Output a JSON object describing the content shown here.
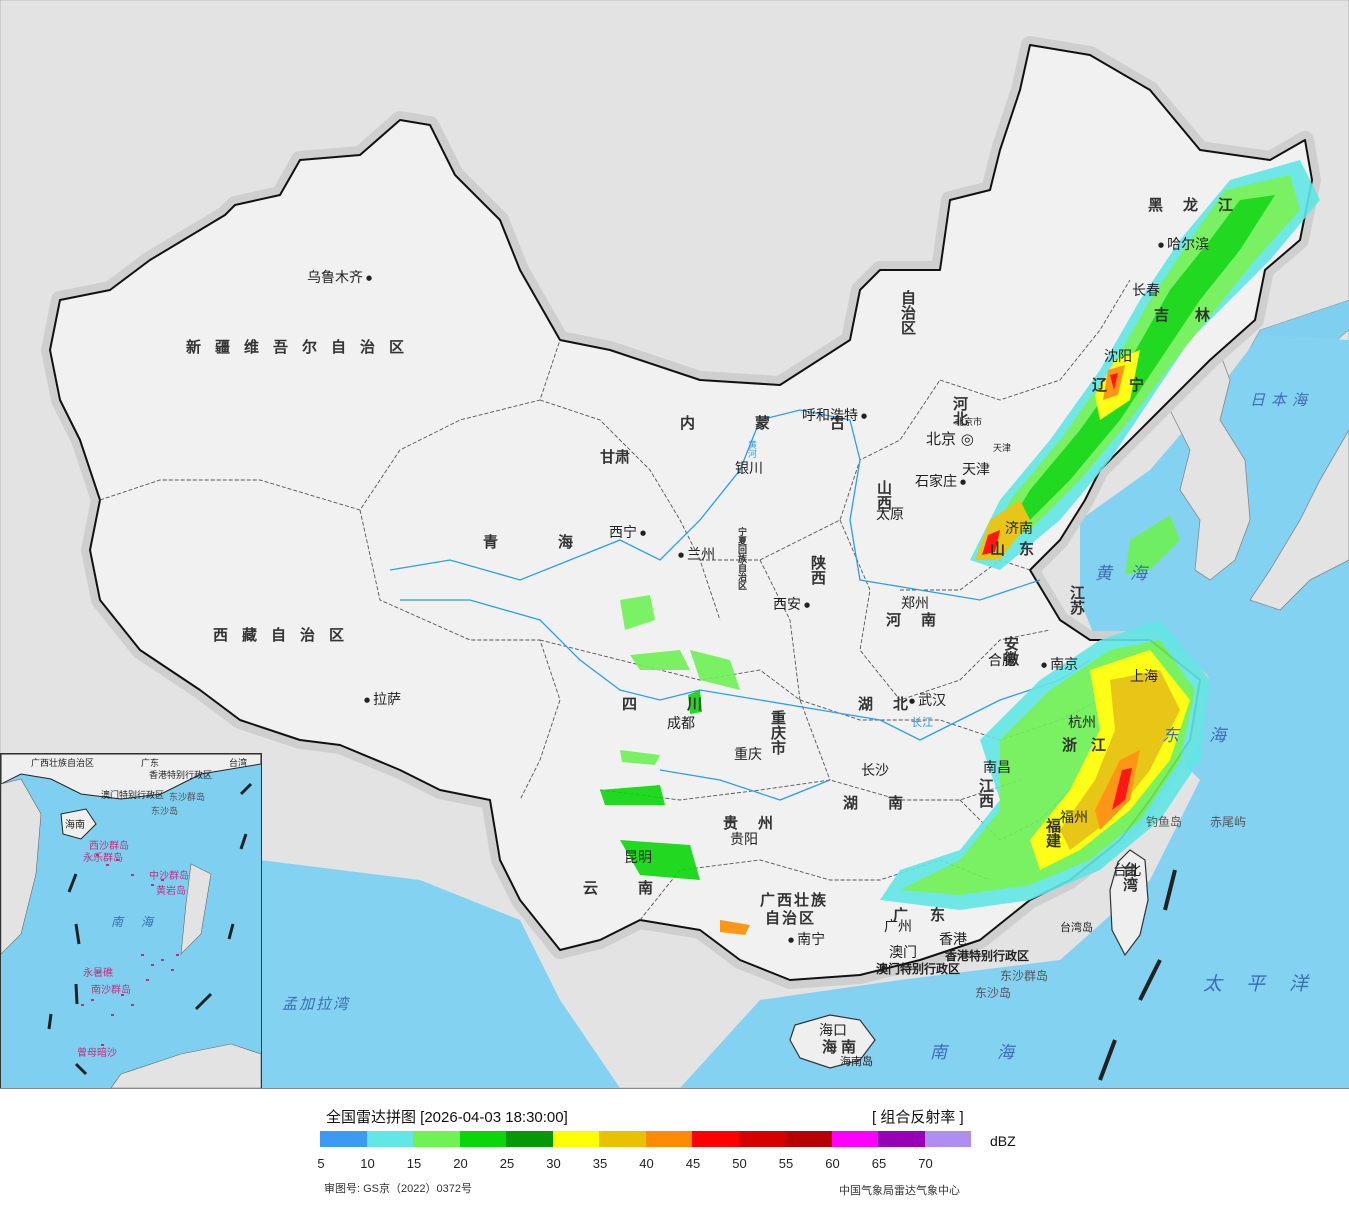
{
  "map": {
    "cities": {
      "urumqi": "乌鲁木齐",
      "lhasa": "拉萨",
      "xining": "西宁",
      "lanzhou": "兰州",
      "yinchuan": "银川",
      "hohhot": "呼和浩特",
      "beijing": "北京",
      "beijing_small": "北京市",
      "tianjin": "天津",
      "tianjin_small": "天津",
      "shijiazhuang": "石家庄",
      "taiyuan": "太原",
      "xian": "西安",
      "zhengzhou": "郑州",
      "jinan": "济南",
      "harbin": "哈尔滨",
      "changchun": "长春",
      "shenyang": "沈阳",
      "hefei": "合肥",
      "nanjing": "南京",
      "shanghai": "上海",
      "hangzhou": "杭州",
      "wuhan": "武汉",
      "chengdu": "成都",
      "chongqing": "重庆",
      "changsha": "长沙",
      "nanchang": "南昌",
      "fuzhou": "福州",
      "guiyang": "贵阳",
      "kunming": "昆明",
      "nanning": "南宁",
      "guangzhou": "广州",
      "macau": "澳门",
      "hongkong": "香港",
      "haikou": "海口",
      "taibei": "台北"
    },
    "provinces": {
      "xinjiang": "新疆维吾尔自治区",
      "xizang": "西藏自治区",
      "qinghai": "青海",
      "gansu": "甘肃",
      "neimenggu_1": "内蒙古",
      "neimenggu_2": "自治区",
      "ningxia": "宁夏回族自治区",
      "shaanxi": "陕西",
      "shanxi": "山西",
      "hebei": "河北",
      "henan": "河南",
      "shandong": "山东",
      "heilongjiang": "黑龙江",
      "jilin": "吉林",
      "liaoning": "辽宁",
      "sichuan": "四川",
      "chongqing": "重庆市",
      "hubei": "湖北",
      "hunan": "湖南",
      "anhui": "安徽",
      "jiangsu": "江苏",
      "zhejiang": "浙江",
      "jiangxi": "江西",
      "fujian": "福建",
      "guizhou": "贵州",
      "yunnan": "云南",
      "guangxi_1": "广西壮族",
      "guangxi_2": "自治区",
      "guangdong": "广东",
      "hainan": "海南",
      "hainan_island": "海南岛",
      "taiwan": "台湾",
      "taiwan_island": "台湾岛",
      "hk_sar": "香港特别行政区",
      "macau_sar": "澳门特别行政区"
    },
    "seas": {
      "japan_sea": "日本海",
      "yellow_sea": "黄海",
      "east_sea": "东海",
      "pacific": "太平洋",
      "south_sea": "南海",
      "bengal": "孟加拉湾"
    },
    "islands": {
      "diaoyu": "钓鱼岛",
      "chiwei": "赤尾屿",
      "dongsha": "东沙群岛",
      "dongsha_dao": "东沙岛"
    },
    "rivers": {
      "huanghe": "黄河",
      "changjiang": "长江"
    },
    "inset": {
      "guangxi": "广西壮族自治区",
      "guangdong": "广东",
      "hk": "香港特别行政区",
      "macau": "澳门特别行政区",
      "taiwan": "台湾",
      "dongsha": "东沙群岛",
      "dongsha_dao": "东沙岛",
      "hainan": "海南",
      "xisha": "西沙群岛",
      "yongle": "永乐群岛",
      "zhongsha": "中沙群岛",
      "huangyan": "黄岩岛",
      "south_sea": "南海",
      "yongshu": "永暑礁",
      "nansha": "南沙群岛",
      "zengmu": "曾母暗沙"
    }
  },
  "legend": {
    "title": "全国雷达拼图 [2026-04-03 18:30:00]",
    "product": "[ 组合反射率 ]",
    "unit": "dBZ",
    "ticks": [
      "5",
      "10",
      "15",
      "20",
      "25",
      "30",
      "35",
      "40",
      "45",
      "50",
      "55",
      "60",
      "65",
      "70"
    ],
    "colors": [
      "#3d9af2",
      "#62e6e6",
      "#6ef254",
      "#0ad70a",
      "#079807",
      "#ffff00",
      "#e8c200",
      "#ff8c00",
      "#ff0000",
      "#d70000",
      "#b80000",
      "#ff00ff",
      "#9800b5",
      "#ae8ff0"
    ],
    "map_approval": "审图号: GS京（2022）0372号",
    "source": "中国气象局雷达气象中心"
  }
}
